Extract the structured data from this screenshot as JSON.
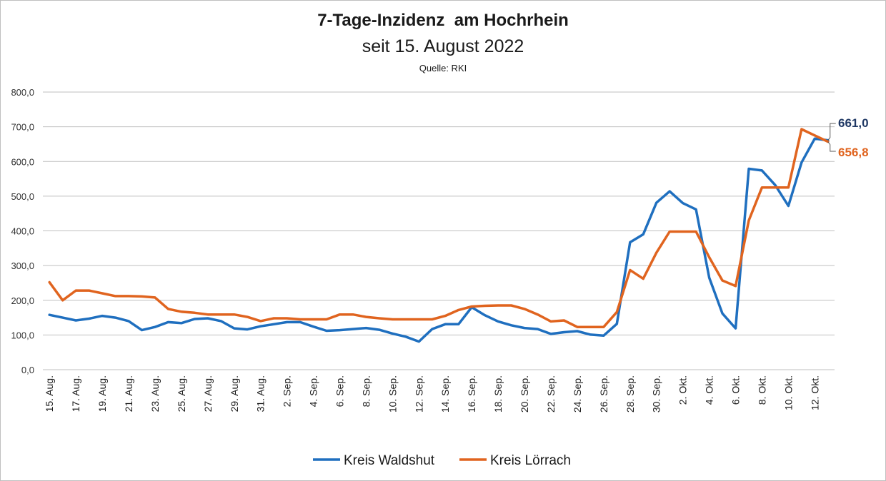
{
  "chart_data": {
    "type": "line",
    "title": "7-Tage-Inzidenz  am Hochrhein",
    "subtitle": "seit 15. August 2022",
    "source": "Quelle: RKI",
    "ylim": [
      0,
      800
    ],
    "yticks": [
      "0,0",
      "100,0",
      "200,0",
      "300,0",
      "400,0",
      "500,0",
      "600,0",
      "700,0",
      "800,0"
    ],
    "ytick_values": [
      0,
      100,
      200,
      300,
      400,
      500,
      600,
      700,
      800
    ],
    "grid": true,
    "legend_position": "bottom",
    "x": [
      "15. Aug.",
      "16. Aug.",
      "17. Aug.",
      "18. Aug.",
      "19. Aug.",
      "20. Aug.",
      "21. Aug.",
      "22. Aug.",
      "23. Aug.",
      "24. Aug.",
      "25. Aug.",
      "26. Aug.",
      "27. Aug.",
      "28. Aug.",
      "29. Aug.",
      "30. Aug.",
      "31. Aug.",
      "1. Sep.",
      "2. Sep.",
      "3. Sep.",
      "4. Sep.",
      "5. Sep.",
      "6. Sep.",
      "7. Sep.",
      "8. Sep.",
      "9. Sep.",
      "10. Sep.",
      "11. Sep.",
      "12. Sep.",
      "13. Sep.",
      "14. Sep.",
      "15. Sep.",
      "16. Sep.",
      "17. Sep.",
      "18. Sep.",
      "19. Sep.",
      "20. Sep.",
      "21. Sep.",
      "22. Sep.",
      "23. Sep.",
      "24. Sep.",
      "25. Sep.",
      "26. Sep.",
      "27. Sep.",
      "28. Sep.",
      "29. Sep.",
      "30. Sep.",
      "1. Okt.",
      "2. Okt.",
      "3. Okt.",
      "4. Okt.",
      "5. Okt.",
      "6. Okt.",
      "7. Okt.",
      "8. Okt.",
      "9. Okt.",
      "10. Okt.",
      "11. Okt.",
      "12. Okt.",
      "13. Okt."
    ],
    "xticks_shown": [
      "15. Aug.",
      "17. Aug.",
      "19. Aug.",
      "21. Aug.",
      "23. Aug.",
      "25. Aug.",
      "27. Aug.",
      "29. Aug.",
      "31. Aug.",
      "2. Sep.",
      "4. Sep.",
      "6. Sep.",
      "8. Sep.",
      "10. Sep.",
      "12. Sep.",
      "14. Sep.",
      "16. Sep.",
      "18. Sep.",
      "20. Sep.",
      "22. Sep.",
      "24. Sep.",
      "26. Sep.",
      "28. Sep.",
      "30. Sep.",
      "2. Okt.",
      "4. Okt.",
      "6. Okt.",
      "8. Okt.",
      "10. Okt.",
      "12. Okt."
    ],
    "series": [
      {
        "name": "Kreis Waldshut",
        "color": "#1f6fbf",
        "values": [
          158,
          150,
          142,
          147,
          155,
          150,
          140,
          114,
          123,
          137,
          134,
          146,
          148,
          140,
          119,
          116,
          125,
          131,
          137,
          137,
          124,
          112,
          114,
          117,
          120,
          115,
          104,
          95,
          81,
          117,
          131,
          131,
          180,
          157,
          139,
          128,
          120,
          117,
          103,
          108,
          111,
          101,
          98,
          132,
          367,
          390,
          481,
          514,
          480,
          462,
          265,
          162,
          119,
          579,
          574,
          532,
          472,
          597,
          666,
          661.0
        ],
        "end_label": "661,0",
        "end_label_color": "#1f3864"
      },
      {
        "name": "Kreis Lörrach",
        "color": "#e0641f",
        "values": [
          252,
          200,
          228,
          228,
          220,
          212,
          212,
          211,
          208,
          175,
          167,
          164,
          159,
          159,
          159,
          152,
          140,
          148,
          148,
          145,
          145,
          145,
          159,
          159,
          152,
          148,
          145,
          145,
          145,
          145,
          155,
          172,
          182,
          184,
          185,
          185,
          175,
          159,
          139,
          142,
          123,
          123,
          123,
          166,
          287,
          262,
          337,
          398,
          398,
          398,
          324,
          257,
          241,
          430,
          525,
          525,
          525,
          693,
          675,
          656.8
        ],
        "end_label": "656,8",
        "end_label_color": "#e0641f"
      }
    ]
  }
}
